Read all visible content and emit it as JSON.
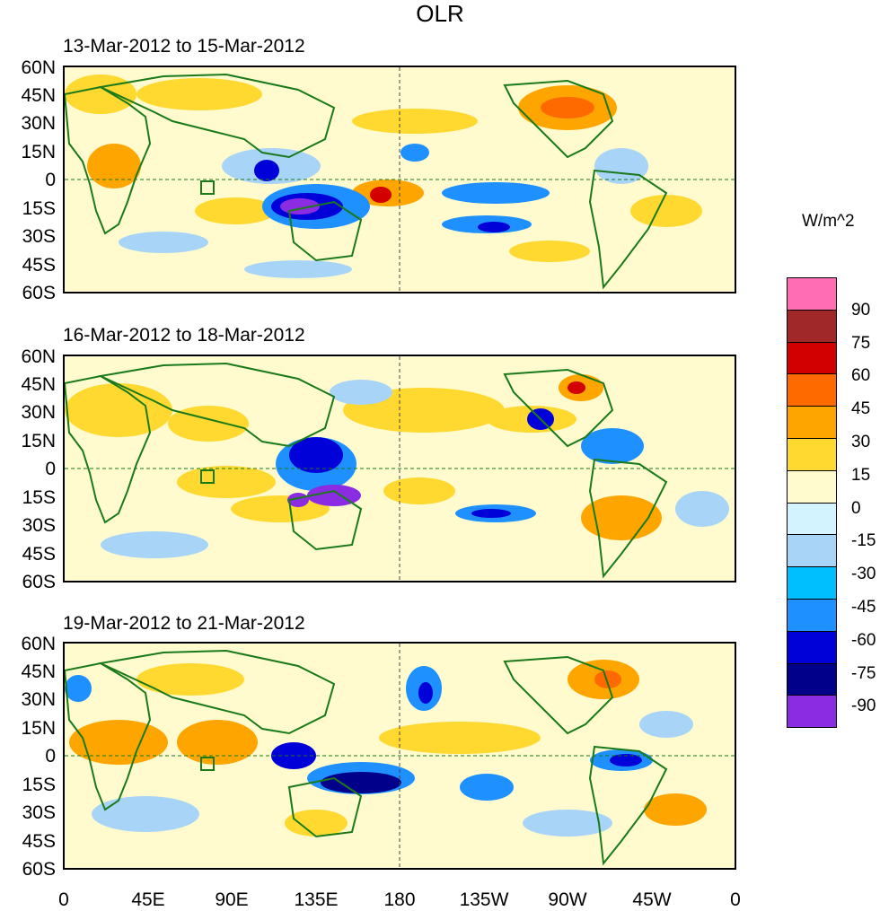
{
  "title": "OLR",
  "units": "W/m^2",
  "panels": [
    {
      "title": "13-Mar-2012 to 15-Mar-2012"
    },
    {
      "title": "16-Mar-2012 to 18-Mar-2012"
    },
    {
      "title": "19-Mar-2012 to 21-Mar-2012"
    }
  ],
  "lat_ticks": [
    "60N",
    "45N",
    "30N",
    "15N",
    "0",
    "15S",
    "30S",
    "45S",
    "60S"
  ],
  "lon_ticks": [
    "0",
    "45E",
    "90E",
    "135E",
    "180",
    "135W",
    "90W",
    "45W",
    "0"
  ],
  "colorbar": {
    "colors": [
      "#ff6eb4",
      "#a02828",
      "#d20000",
      "#ff6a00",
      "#ffa500",
      "#ffd930",
      "#fffbcf",
      "#d2f3ff",
      "#a8d4f8",
      "#00bfff",
      "#1e90ff",
      "#0000d8",
      "#00008b",
      "#8b2be2"
    ],
    "labels": [
      "90",
      "75",
      "60",
      "45",
      "30",
      "15",
      "0",
      "-15",
      "-30",
      "-45",
      "-60",
      "-75",
      "-90"
    ]
  },
  "colors": {
    "coast": "#1a7a1a",
    "positive_light": "#ffd930",
    "positive_mid": "#ffa500",
    "positive_strong": "#d20000",
    "negative_light": "#a8d4f8",
    "negative_mid": "#1e90ff",
    "negative_strong": "#0000d8",
    "negative_extreme": "#8b2be2"
  }
}
